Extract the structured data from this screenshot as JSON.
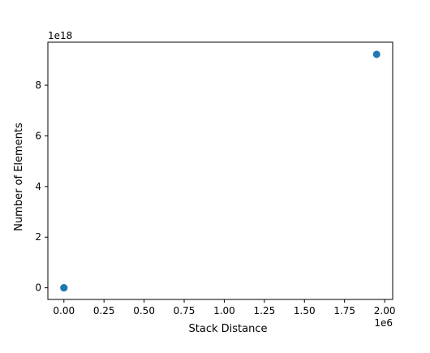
{
  "chart_data": {
    "type": "scatter",
    "title": "",
    "xlabel": "Stack Distance",
    "ylabel": "Number of Elements",
    "x_offset_label": "1e6",
    "y_offset_label": "1e18",
    "xlim": [
      -100000,
      2050000
    ],
    "ylim": [
      -4.6e+17,
      9.7e+18
    ],
    "x_ticks": [
      0,
      250000,
      500000,
      750000,
      1000000,
      1250000,
      1500000,
      1750000,
      2000000
    ],
    "x_tick_labels": [
      "0.00",
      "0.25",
      "0.50",
      "0.75",
      "1.00",
      "1.25",
      "1.50",
      "1.75",
      "2.00"
    ],
    "y_ticks": [
      0,
      2e+18,
      4e+18,
      6e+18,
      8e+18
    ],
    "y_tick_labels": [
      "0",
      "2",
      "4",
      "6",
      "8"
    ],
    "grid": false,
    "series": [
      {
        "color": "#1f77b4",
        "points": [
          {
            "x": 0,
            "y": 0
          },
          {
            "x": 1,
            "y": 0
          },
          {
            "x": 2,
            "y": 0
          },
          {
            "x": 1950000,
            "y": 9.22e+18
          }
        ]
      }
    ]
  }
}
